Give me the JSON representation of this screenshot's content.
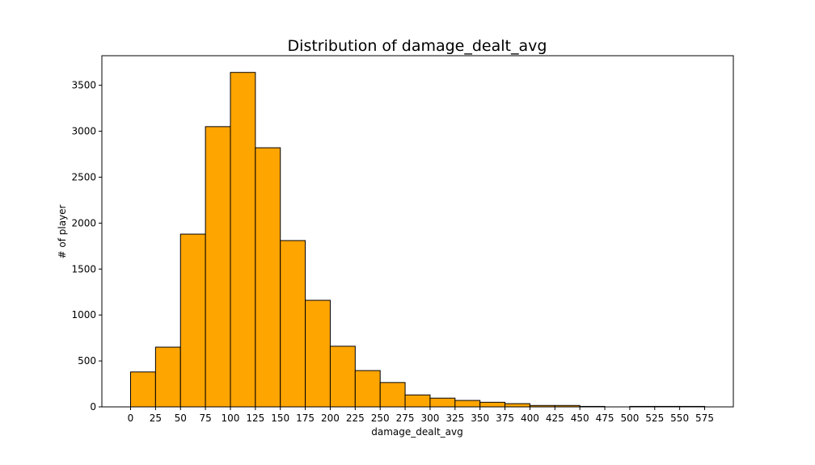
{
  "chart_data": {
    "type": "bar",
    "title": "Distribution of damage_dealt_avg",
    "xlabel": "damage_dealt_avg",
    "ylabel": "# of player",
    "bar_color": "#FFA500",
    "edge_color": "#000000",
    "bin_width": 25,
    "xlim": [
      -28.75,
      603.75
    ],
    "ylim": [
      0,
      3822
    ],
    "x_ticks": [
      0,
      25,
      50,
      75,
      100,
      125,
      150,
      175,
      200,
      225,
      250,
      275,
      300,
      325,
      350,
      375,
      400,
      425,
      450,
      475,
      500,
      525,
      550,
      575
    ],
    "y_ticks": [
      0,
      500,
      1000,
      1500,
      2000,
      2500,
      3000,
      3500
    ],
    "grid": false,
    "bins": [
      0,
      25,
      50,
      75,
      100,
      125,
      150,
      175,
      200,
      225,
      250,
      275,
      300,
      325,
      350,
      375,
      400,
      425,
      450,
      475,
      500,
      525,
      550
    ],
    "values": [
      380,
      650,
      1880,
      3050,
      3640,
      2820,
      1810,
      1160,
      660,
      395,
      265,
      130,
      95,
      70,
      50,
      35,
      15,
      15,
      5,
      0,
      5,
      5,
      5
    ]
  }
}
